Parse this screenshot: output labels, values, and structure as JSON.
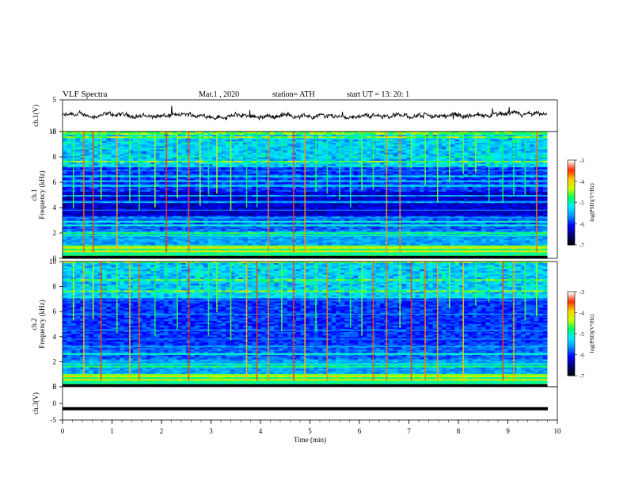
{
  "header": {
    "title": "VLF  Spectra",
    "date": "Mar.1  , 2020",
    "station": "station= ATH",
    "start_ut": "start  UT  =    13: 20: 1"
  },
  "chart_data": [
    {
      "type": "line",
      "panel": "ch1-waveform",
      "ylabel": "ch.1(V)",
      "ylim": [
        -5,
        5
      ],
      "yticks": [
        "5",
        "-5"
      ],
      "xlim": [
        0,
        10
      ],
      "series": [
        {
          "values_summary": "noisy trace centered near 0 V, amplitude about ±1 V",
          "color": "#000000"
        }
      ]
    },
    {
      "type": "heatmap",
      "panel": "ch1-spectrogram",
      "ylabel": "ch.1\nFrequency  (kHz)",
      "ylim": [
        0,
        10
      ],
      "yticks": [
        "0",
        "2",
        "4",
        "6",
        "8",
        "10"
      ],
      "xlim": [
        0,
        9.8
      ],
      "colorbar": {
        "label": "log(PSD)(V²/Hz)",
        "range": [
          -7,
          -3
        ],
        "ticks": [
          "-3",
          "-4",
          "-5",
          "-6",
          "-7"
        ]
      },
      "event_times_min": [
        0.22,
        0.43,
        0.62,
        0.78,
        1.1,
        1.36,
        1.55,
        1.87,
        2.1,
        2.32,
        2.55,
        2.78,
        2.95,
        3.12,
        3.4,
        3.72,
        3.93,
        4.16,
        4.43,
        4.67,
        4.9,
        5.12,
        5.35,
        5.6,
        5.82,
        6.05,
        6.28,
        6.55,
        6.82,
        7.05,
        7.33,
        7.58,
        7.82,
        8.1,
        8.35,
        8.62,
        8.9,
        9.12,
        9.35,
        9.58
      ]
    },
    {
      "type": "heatmap",
      "panel": "ch2-spectrogram",
      "ylabel": "ch.2\nFrequency  (kHz)",
      "ylim": [
        0,
        10
      ],
      "yticks": [
        "0",
        "2",
        "4",
        "6",
        "8",
        "10"
      ],
      "xlim": [
        0,
        9.8
      ],
      "colorbar": {
        "label": "log(PSD)(V²/Hz)",
        "range": [
          -7,
          -3
        ],
        "ticks": [
          "-3",
          "-4",
          "-5",
          "-6",
          "-7"
        ]
      },
      "event_times_min": [
        0.22,
        0.43,
        0.62,
        0.78,
        1.1,
        1.36,
        1.55,
        1.87,
        2.1,
        2.32,
        2.55,
        2.78,
        2.95,
        3.12,
        3.4,
        3.72,
        3.93,
        4.16,
        4.43,
        4.67,
        4.9,
        5.12,
        5.35,
        5.6,
        5.82,
        6.05,
        6.28,
        6.55,
        6.82,
        7.05,
        7.33,
        7.58,
        7.82,
        8.1,
        8.35,
        8.62,
        8.9,
        9.12,
        9.35,
        9.58
      ]
    },
    {
      "type": "line",
      "panel": "ch3-waveform",
      "ylabel": "ch.3(V)",
      "ylim": [
        -5,
        5
      ],
      "yticks": [
        "5",
        "0",
        "-5"
      ],
      "xlim": [
        0,
        10
      ],
      "series": [
        {
          "values_summary": "flat thick line at about -1.6 V",
          "constant": -1.6,
          "color": "#000000"
        }
      ]
    }
  ],
  "xaxis": {
    "label": "Time  (min)",
    "ticks": [
      "0",
      "1",
      "2",
      "3",
      "4",
      "5",
      "6",
      "7",
      "8",
      "9",
      "10"
    ],
    "range": [
      0,
      10
    ]
  },
  "colormap": [
    "#000010",
    "#00007a",
    "#0000ff",
    "#0090ff",
    "#00e8ff",
    "#00ff60",
    "#c8ff00",
    "#ffcc00",
    "#ff2a00",
    "#ffffff"
  ]
}
